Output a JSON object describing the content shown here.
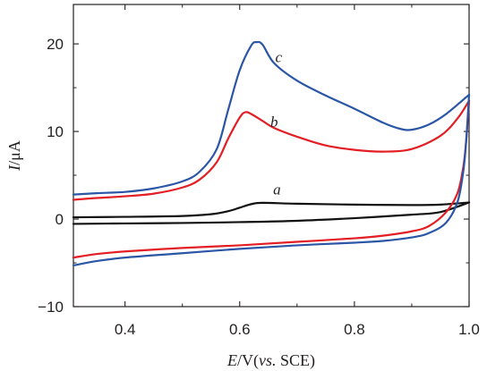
{
  "chart_data": {
    "type": "line",
    "title": "",
    "xlabel": {
      "italic": "E",
      "mid": "/V(",
      "vs": "vs.",
      "tail": " SCE)"
    },
    "ylabel": {
      "italic": "I",
      "tail": "/μA"
    },
    "xlim": [
      0.31,
      1.0
    ],
    "ylim": [
      -10,
      24.5
    ],
    "xticks": [
      0.4,
      0.6,
      0.8,
      1.0
    ],
    "xtick_labels": [
      "0.4",
      "0.6",
      "0.8",
      "1.0"
    ],
    "yticks": [
      -10,
      0,
      10,
      20
    ],
    "ytick_labels": [
      "−10",
      "0",
      "10",
      "20"
    ],
    "grid": false,
    "series": [
      {
        "name": "a",
        "color": "#111111",
        "forward": [
          [
            0.31,
            0.2
          ],
          [
            0.4,
            0.25
          ],
          [
            0.5,
            0.35
          ],
          [
            0.55,
            0.55
          ],
          [
            0.58,
            0.9
          ],
          [
            0.6,
            1.3
          ],
          [
            0.62,
            1.7
          ],
          [
            0.64,
            1.85
          ],
          [
            0.7,
            1.75
          ],
          [
            0.8,
            1.65
          ],
          [
            0.9,
            1.6
          ],
          [
            0.95,
            1.65
          ],
          [
            1.0,
            1.9
          ]
        ],
        "reverse": [
          [
            1.0,
            1.9
          ],
          [
            0.95,
            0.8
          ],
          [
            0.9,
            0.5
          ],
          [
            0.8,
            0.1
          ],
          [
            0.7,
            -0.2
          ],
          [
            0.6,
            -0.35
          ],
          [
            0.5,
            -0.45
          ],
          [
            0.4,
            -0.5
          ],
          [
            0.31,
            -0.55
          ]
        ]
      },
      {
        "name": "b",
        "color": "#e31e24",
        "forward": [
          [
            0.31,
            2.2
          ],
          [
            0.35,
            2.4
          ],
          [
            0.4,
            2.6
          ],
          [
            0.45,
            2.9
          ],
          [
            0.5,
            3.6
          ],
          [
            0.53,
            4.5
          ],
          [
            0.56,
            6.5
          ],
          [
            0.58,
            9.2
          ],
          [
            0.6,
            11.6
          ],
          [
            0.61,
            12.2
          ],
          [
            0.62,
            12.0
          ],
          [
            0.64,
            11.2
          ],
          [
            0.66,
            10.4
          ],
          [
            0.7,
            9.4
          ],
          [
            0.75,
            8.4
          ],
          [
            0.8,
            7.9
          ],
          [
            0.85,
            7.7
          ],
          [
            0.9,
            8.0
          ],
          [
            0.95,
            9.5
          ],
          [
            0.98,
            11.5
          ],
          [
            1.0,
            13.5
          ]
        ],
        "reverse": [
          [
            1.0,
            13.5
          ],
          [
            0.995,
            9.0
          ],
          [
            0.99,
            6.0
          ],
          [
            0.98,
            3.0
          ],
          [
            0.96,
            0.8
          ],
          [
            0.93,
            -0.8
          ],
          [
            0.9,
            -1.4
          ],
          [
            0.85,
            -1.9
          ],
          [
            0.8,
            -2.2
          ],
          [
            0.7,
            -2.6
          ],
          [
            0.6,
            -3.0
          ],
          [
            0.5,
            -3.3
          ],
          [
            0.4,
            -3.7
          ],
          [
            0.35,
            -4.0
          ],
          [
            0.31,
            -4.4
          ]
        ]
      },
      {
        "name": "c",
        "color": "#2b56a6",
        "forward": [
          [
            0.31,
            2.8
          ],
          [
            0.35,
            2.95
          ],
          [
            0.4,
            3.1
          ],
          [
            0.45,
            3.5
          ],
          [
            0.5,
            4.3
          ],
          [
            0.53,
            5.4
          ],
          [
            0.56,
            8.0
          ],
          [
            0.58,
            12.5
          ],
          [
            0.6,
            17.0
          ],
          [
            0.62,
            19.8
          ],
          [
            0.63,
            20.2
          ],
          [
            0.64,
            19.9
          ],
          [
            0.66,
            17.8
          ],
          [
            0.7,
            15.8
          ],
          [
            0.75,
            14.1
          ],
          [
            0.8,
            12.6
          ],
          [
            0.85,
            11.0
          ],
          [
            0.88,
            10.3
          ],
          [
            0.9,
            10.2
          ],
          [
            0.93,
            10.8
          ],
          [
            0.96,
            12.0
          ],
          [
            1.0,
            14.2
          ]
        ],
        "reverse": [
          [
            1.0,
            14.2
          ],
          [
            0.995,
            9.0
          ],
          [
            0.99,
            5.5
          ],
          [
            0.98,
            2.0
          ],
          [
            0.96,
            -0.4
          ],
          [
            0.93,
            -1.6
          ],
          [
            0.9,
            -2.1
          ],
          [
            0.85,
            -2.5
          ],
          [
            0.8,
            -2.7
          ],
          [
            0.7,
            -3.0
          ],
          [
            0.6,
            -3.4
          ],
          [
            0.5,
            -3.9
          ],
          [
            0.4,
            -4.4
          ],
          [
            0.35,
            -4.8
          ],
          [
            0.31,
            -5.3
          ]
        ]
      }
    ],
    "annotations": [
      {
        "text": "c",
        "x": 0.668,
        "y": 17.9
      },
      {
        "text": "b",
        "x": 0.66,
        "y": 10.5
      },
      {
        "text": "a",
        "x": 0.665,
        "y": 2.8
      }
    ]
  }
}
